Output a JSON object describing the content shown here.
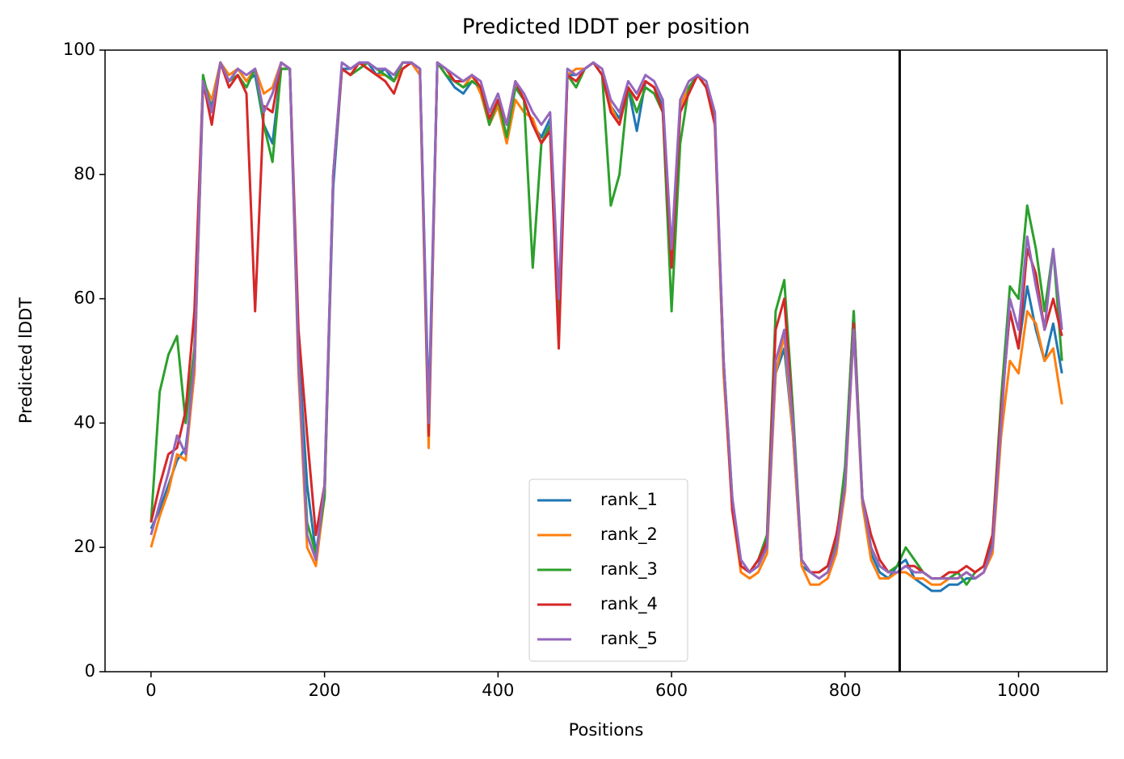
{
  "chart_data": {
    "type": "line",
    "title": "Predicted lDDT per position",
    "x_label": "Positions",
    "y_label": "Predicted lDDT",
    "xlim": [
      -53,
      1102
    ],
    "ylim": [
      0,
      100
    ],
    "xticks": [
      0,
      200,
      400,
      600,
      800,
      1000
    ],
    "yticks": [
      0,
      20,
      40,
      60,
      80,
      100
    ],
    "grid": false,
    "legend": "lower center",
    "vline": {
      "x": 863,
      "color": "#000000"
    },
    "x": [
      0,
      10,
      20,
      30,
      40,
      50,
      60,
      70,
      80,
      90,
      100,
      110,
      120,
      130,
      140,
      150,
      160,
      170,
      180,
      190,
      200,
      210,
      220,
      230,
      240,
      250,
      260,
      270,
      280,
      290,
      300,
      310,
      320,
      330,
      340,
      350,
      360,
      370,
      380,
      390,
      400,
      410,
      420,
      430,
      440,
      450,
      460,
      470,
      480,
      490,
      500,
      510,
      520,
      530,
      540,
      550,
      560,
      570,
      580,
      590,
      600,
      610,
      620,
      630,
      640,
      650,
      660,
      670,
      680,
      690,
      700,
      710,
      720,
      730,
      740,
      750,
      760,
      770,
      780,
      790,
      800,
      810,
      820,
      830,
      840,
      850,
      860,
      870,
      880,
      890,
      900,
      910,
      920,
      930,
      940,
      950,
      960,
      970,
      980,
      990,
      1000,
      1010,
      1020,
      1030,
      1040,
      1050
    ],
    "series": [
      {
        "name": "rank_1",
        "color": "#1f77b4",
        "values": [
          23,
          26,
          30,
          34,
          36,
          48,
          94,
          91,
          98,
          95,
          97,
          95,
          96,
          88,
          85,
          97,
          97,
          52,
          30,
          19,
          28,
          78,
          97,
          97,
          98,
          98,
          96,
          97,
          95,
          98,
          98,
          97,
          42,
          98,
          96,
          94,
          93,
          95,
          94,
          88,
          92,
          86,
          94,
          92,
          88,
          86,
          89,
          58,
          96,
          96,
          97,
          98,
          96,
          91,
          89,
          94,
          87,
          95,
          94,
          91,
          66,
          91,
          94,
          96,
          94,
          89,
          48,
          27,
          17,
          16,
          17,
          21,
          48,
          52,
          38,
          17,
          16,
          16,
          17,
          21,
          32,
          58,
          27,
          19,
          16,
          15,
          17,
          18,
          15,
          14,
          13,
          13,
          14,
          14,
          15,
          15,
          16,
          21,
          42,
          58,
          52,
          62,
          55,
          50,
          56,
          48
        ]
      },
      {
        "name": "rank_2",
        "color": "#ff7f0e",
        "values": [
          20,
          25,
          29,
          35,
          34,
          48,
          95,
          92,
          98,
          96,
          97,
          95,
          97,
          93,
          94,
          98,
          97,
          48,
          20,
          17,
          28,
          80,
          97,
          96,
          98,
          97,
          96,
          96,
          95,
          97,
          98,
          96,
          36,
          98,
          96,
          95,
          94,
          96,
          93,
          88,
          91,
          85,
          92,
          90,
          89,
          85,
          88,
          55,
          96,
          97,
          97,
          98,
          96,
          91,
          88,
          94,
          92,
          95,
          94,
          90,
          66,
          91,
          94,
          96,
          94,
          88,
          48,
          26,
          16,
          15,
          16,
          19,
          48,
          54,
          38,
          17,
          14,
          14,
          15,
          19,
          29,
          55,
          27,
          18,
          15,
          15,
          16,
          16,
          15,
          15,
          14,
          14,
          15,
          15,
          16,
          15,
          16,
          19,
          38,
          50,
          48,
          58,
          56,
          50,
          52,
          43
        ]
      },
      {
        "name": "rank_3",
        "color": "#2ca02c",
        "values": [
          24,
          45,
          51,
          54,
          40,
          52,
          96,
          90,
          98,
          95,
          96,
          94,
          97,
          88,
          82,
          97,
          97,
          50,
          24,
          19,
          28,
          80,
          97,
          96,
          97,
          98,
          97,
          96,
          95,
          98,
          98,
          97,
          38,
          98,
          96,
          95,
          94,
          95,
          94,
          88,
          92,
          86,
          94,
          92,
          65,
          85,
          88,
          56,
          96,
          94,
          97,
          98,
          96,
          75,
          80,
          94,
          90,
          94,
          93,
          90,
          58,
          85,
          94,
          96,
          94,
          89,
          50,
          28,
          17,
          16,
          18,
          22,
          58,
          63,
          42,
          18,
          16,
          16,
          17,
          21,
          33,
          58,
          28,
          20,
          17,
          16,
          17,
          20,
          18,
          16,
          15,
          15,
          15,
          16,
          14,
          16,
          17,
          22,
          44,
          62,
          60,
          75,
          68,
          58,
          68,
          50
        ]
      },
      {
        "name": "rank_4",
        "color": "#d62728",
        "values": [
          24,
          30,
          35,
          36,
          42,
          58,
          95,
          88,
          98,
          94,
          96,
          93,
          58,
          91,
          90,
          98,
          97,
          55,
          38,
          22,
          30,
          80,
          97,
          96,
          98,
          97,
          96,
          95,
          93,
          97,
          98,
          97,
          38,
          98,
          97,
          95,
          95,
          96,
          94,
          89,
          92,
          88,
          95,
          92,
          88,
          85,
          87,
          52,
          96,
          95,
          97,
          98,
          96,
          90,
          88,
          94,
          92,
          95,
          94,
          90,
          65,
          90,
          93,
          96,
          94,
          88,
          50,
          26,
          17,
          16,
          18,
          21,
          55,
          60,
          40,
          18,
          16,
          16,
          17,
          22,
          30,
          56,
          28,
          22,
          18,
          16,
          16,
          17,
          17,
          16,
          15,
          15,
          16,
          16,
          17,
          16,
          17,
          22,
          42,
          58,
          52,
          68,
          64,
          55,
          60,
          54
        ]
      },
      {
        "name": "rank_5",
        "color": "#9467bd",
        "values": [
          22,
          27,
          32,
          38,
          35,
          50,
          95,
          90,
          98,
          95,
          97,
          96,
          97,
          90,
          93,
          98,
          97,
          50,
          22,
          18,
          30,
          80,
          98,
          97,
          98,
          98,
          97,
          97,
          96,
          98,
          98,
          97,
          40,
          98,
          97,
          96,
          95,
          96,
          95,
          90,
          93,
          88,
          95,
          93,
          90,
          88,
          90,
          60,
          97,
          96,
          97,
          98,
          97,
          92,
          90,
          95,
          93,
          96,
          95,
          92,
          68,
          92,
          95,
          96,
          95,
          90,
          50,
          28,
          18,
          16,
          17,
          20,
          50,
          55,
          40,
          18,
          16,
          15,
          16,
          20,
          30,
          55,
          28,
          20,
          17,
          16,
          16,
          17,
          16,
          16,
          15,
          15,
          15,
          15,
          16,
          15,
          16,
          20,
          40,
          60,
          55,
          70,
          62,
          55,
          68,
          55
        ]
      }
    ]
  }
}
